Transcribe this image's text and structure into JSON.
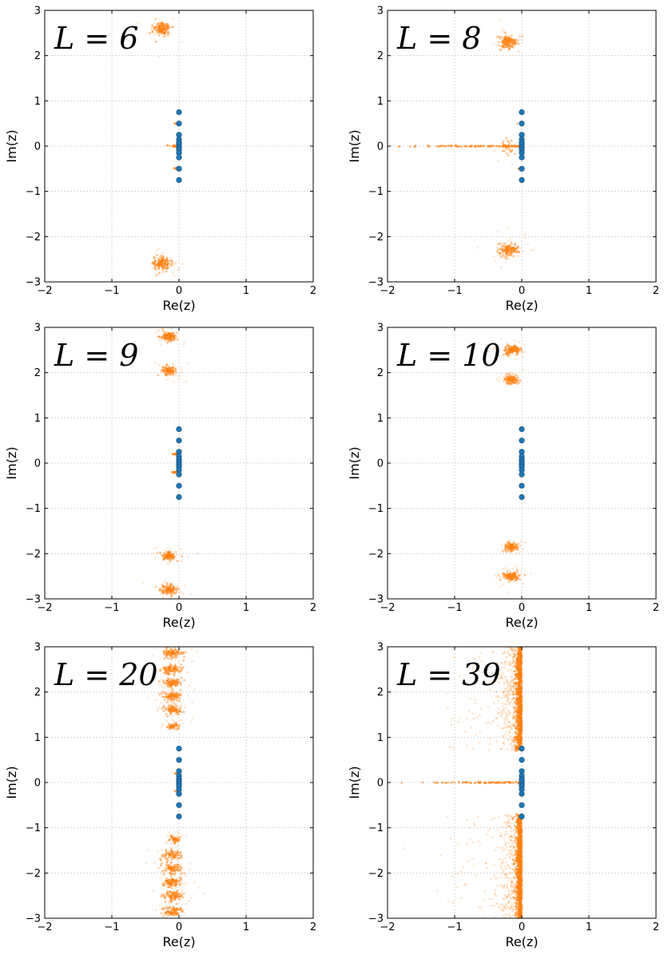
{
  "chart_data": [
    {
      "type": "scatter",
      "panel_label": "L = 6",
      "xlabel": "Re(z)",
      "ylabel": "Im(z)",
      "xlim": [
        -2,
        2
      ],
      "ylim": [
        -3,
        3
      ],
      "xticks": [
        -2,
        -1,
        0,
        1,
        2
      ],
      "yticks": [
        -3,
        -2,
        -1,
        0,
        1,
        2,
        3
      ],
      "grid": true,
      "blue_points": [
        [
          0,
          0.75
        ],
        [
          0,
          0.5
        ],
        [
          0,
          0.25
        ],
        [
          0,
          0.15
        ],
        [
          0,
          0.08
        ],
        [
          0,
          0.03
        ],
        [
          0,
          -0.03
        ],
        [
          0,
          -0.08
        ],
        [
          0,
          -0.15
        ],
        [
          0,
          -0.25
        ],
        [
          0,
          -0.5
        ],
        [
          0,
          -0.75
        ]
      ],
      "orange_clusters": [
        {
          "x": -0.25,
          "y": 2.6,
          "sx": 0.06,
          "sy": 0.07,
          "n": 160
        },
        {
          "x": -0.25,
          "y": -2.6,
          "sx": 0.06,
          "sy": 0.07,
          "n": 160
        }
      ],
      "orange_streaks": [
        {
          "x0": -0.2,
          "x1": 0.0,
          "y": 0.0,
          "n": 40
        },
        {
          "x0": -0.08,
          "x1": 0.0,
          "y": 0.5,
          "n": 12
        },
        {
          "x0": -0.08,
          "x1": 0.0,
          "y": -0.5,
          "n": 12
        }
      ],
      "orange_bands": []
    },
    {
      "type": "scatter",
      "panel_label": "L = 8",
      "xlabel": "Re(z)",
      "ylabel": "Im(z)",
      "xlim": [
        -2,
        2
      ],
      "ylim": [
        -3,
        3
      ],
      "xticks": [
        -2,
        -1,
        0,
        1,
        2
      ],
      "yticks": [
        -3,
        -2,
        -1,
        0,
        1,
        2,
        3
      ],
      "grid": true,
      "blue_points": [
        [
          0,
          0.75
        ],
        [
          0,
          0.5
        ],
        [
          0,
          0.25
        ],
        [
          0,
          0.15
        ],
        [
          0,
          0.08
        ],
        [
          0,
          0.03
        ],
        [
          0,
          -0.03
        ],
        [
          0,
          -0.08
        ],
        [
          0,
          -0.15
        ],
        [
          0,
          -0.25
        ],
        [
          0,
          -0.5
        ],
        [
          0,
          -0.75
        ]
      ],
      "orange_clusters": [
        {
          "x": -0.2,
          "y": 2.3,
          "sx": 0.07,
          "sy": 0.07,
          "n": 160
        },
        {
          "x": -0.2,
          "y": -2.3,
          "sx": 0.07,
          "sy": 0.07,
          "n": 160
        },
        {
          "x": -0.18,
          "y": 0.0,
          "sx": 0.05,
          "sy": 0.1,
          "n": 30
        }
      ],
      "orange_streaks": [
        {
          "x0": -2.0,
          "x1": 0.0,
          "y": 0.0,
          "n": 120
        },
        {
          "x0": -0.08,
          "x1": 0.0,
          "y": 0.5,
          "n": 10
        },
        {
          "x0": -0.08,
          "x1": 0.0,
          "y": -0.5,
          "n": 10
        }
      ],
      "orange_bands": []
    },
    {
      "type": "scatter",
      "panel_label": "L = 9",
      "xlabel": "Re(z)",
      "ylabel": "Im(z)",
      "xlim": [
        -2,
        2
      ],
      "ylim": [
        -3,
        3
      ],
      "xticks": [
        -2,
        -1,
        0,
        1,
        2
      ],
      "yticks": [
        -3,
        -2,
        -1,
        0,
        1,
        2,
        3
      ],
      "grid": true,
      "blue_points": [
        [
          0,
          0.75
        ],
        [
          0,
          0.5
        ],
        [
          0,
          0.25
        ],
        [
          0,
          0.15
        ],
        [
          0,
          0.08
        ],
        [
          0,
          0.03
        ],
        [
          0,
          -0.03
        ],
        [
          0,
          -0.08
        ],
        [
          0,
          -0.15
        ],
        [
          0,
          -0.25
        ],
        [
          0,
          -0.5
        ],
        [
          0,
          -0.75
        ]
      ],
      "orange_clusters": [
        {
          "x": -0.15,
          "y": 2.8,
          "sx": 0.06,
          "sy": 0.05,
          "n": 140
        },
        {
          "x": -0.15,
          "y": 2.05,
          "sx": 0.05,
          "sy": 0.05,
          "n": 120
        },
        {
          "x": -0.15,
          "y": -2.05,
          "sx": 0.05,
          "sy": 0.05,
          "n": 120
        },
        {
          "x": -0.15,
          "y": -2.8,
          "sx": 0.06,
          "sy": 0.05,
          "n": 140
        }
      ],
      "orange_streaks": [
        {
          "x0": -0.12,
          "x1": 0.0,
          "y": 0.2,
          "n": 30
        },
        {
          "x0": -0.12,
          "x1": 0.0,
          "y": -0.2,
          "n": 30
        }
      ],
      "orange_bands": []
    },
    {
      "type": "scatter",
      "panel_label": "L = 10",
      "xlabel": "Re(z)",
      "ylabel": "Im(z)",
      "xlim": [
        -2,
        2
      ],
      "ylim": [
        -3,
        3
      ],
      "xticks": [
        -2,
        -1,
        0,
        1,
        2
      ],
      "yticks": [
        -3,
        -2,
        -1,
        0,
        1,
        2,
        3
      ],
      "grid": true,
      "blue_points": [
        [
          0,
          0.75
        ],
        [
          0,
          0.5
        ],
        [
          0,
          0.25
        ],
        [
          0,
          0.15
        ],
        [
          0,
          0.08
        ],
        [
          0,
          0.03
        ],
        [
          0,
          -0.03
        ],
        [
          0,
          -0.08
        ],
        [
          0,
          -0.15
        ],
        [
          0,
          -0.25
        ],
        [
          0,
          -0.5
        ],
        [
          0,
          -0.75
        ]
      ],
      "orange_clusters": [
        {
          "x": -0.15,
          "y": 2.5,
          "sx": 0.06,
          "sy": 0.05,
          "n": 140
        },
        {
          "x": -0.15,
          "y": 1.85,
          "sx": 0.05,
          "sy": 0.05,
          "n": 120
        },
        {
          "x": -0.15,
          "y": -1.85,
          "sx": 0.05,
          "sy": 0.05,
          "n": 120
        },
        {
          "x": -0.15,
          "y": -2.5,
          "sx": 0.06,
          "sy": 0.05,
          "n": 140
        }
      ],
      "orange_streaks": [
        {
          "x0": -0.03,
          "x1": 0.0,
          "y": 0.2,
          "n": 8
        },
        {
          "x0": -0.03,
          "x1": 0.0,
          "y": -0.2,
          "n": 8
        }
      ],
      "orange_bands": []
    },
    {
      "type": "scatter",
      "panel_label": "L = 20",
      "xlabel": "Re(z)",
      "ylabel": "Im(z)",
      "xlim": [
        -2,
        2
      ],
      "ylim": [
        -3,
        3
      ],
      "xticks": [
        -2,
        -1,
        0,
        1,
        2
      ],
      "yticks": [
        -3,
        -2,
        -1,
        0,
        1,
        2,
        3
      ],
      "grid": true,
      "blue_points": [
        [
          0,
          0.75
        ],
        [
          0,
          0.5
        ],
        [
          0,
          0.25
        ],
        [
          0,
          0.15
        ],
        [
          0,
          0.08
        ],
        [
          0,
          0.03
        ],
        [
          0,
          -0.03
        ],
        [
          0,
          -0.08
        ],
        [
          0,
          -0.15
        ],
        [
          0,
          -0.25
        ],
        [
          0,
          -0.5
        ],
        [
          0,
          -0.75
        ]
      ],
      "orange_clusters": [
        {
          "x": -0.1,
          "y": 2.85,
          "sx": 0.07,
          "sy": 0.05,
          "n": 110
        },
        {
          "x": -0.1,
          "y": 2.5,
          "sx": 0.07,
          "sy": 0.05,
          "n": 110
        },
        {
          "x": -0.1,
          "y": 2.2,
          "sx": 0.07,
          "sy": 0.05,
          "n": 110
        },
        {
          "x": -0.1,
          "y": 1.9,
          "sx": 0.07,
          "sy": 0.05,
          "n": 110
        },
        {
          "x": -0.1,
          "y": 1.6,
          "sx": 0.07,
          "sy": 0.05,
          "n": 100
        },
        {
          "x": -0.08,
          "y": 1.25,
          "sx": 0.04,
          "sy": 0.04,
          "n": 60
        },
        {
          "x": -0.08,
          "y": -1.25,
          "sx": 0.04,
          "sy": 0.04,
          "n": 60
        },
        {
          "x": -0.1,
          "y": -1.6,
          "sx": 0.07,
          "sy": 0.05,
          "n": 100
        },
        {
          "x": -0.1,
          "y": -1.9,
          "sx": 0.07,
          "sy": 0.05,
          "n": 110
        },
        {
          "x": -0.1,
          "y": -2.2,
          "sx": 0.07,
          "sy": 0.05,
          "n": 110
        },
        {
          "x": -0.1,
          "y": -2.5,
          "sx": 0.07,
          "sy": 0.05,
          "n": 110
        },
        {
          "x": -0.1,
          "y": -2.85,
          "sx": 0.07,
          "sy": 0.05,
          "n": 110
        }
      ],
      "orange_streaks": [
        {
          "x0": -0.08,
          "x1": 0.0,
          "y": 0.2,
          "n": 10
        },
        {
          "x0": -0.08,
          "x1": 0.0,
          "y": -0.2,
          "n": 10
        }
      ],
      "orange_bands": []
    },
    {
      "type": "scatter",
      "panel_label": "L = 39",
      "xlabel": "Re(z)",
      "ylabel": "Im(z)",
      "xlim": [
        -2,
        2
      ],
      "ylim": [
        -3,
        3
      ],
      "xticks": [
        -2,
        -1,
        0,
        1,
        2
      ],
      "yticks": [
        -3,
        -2,
        -1,
        0,
        1,
        2,
        3
      ],
      "grid": true,
      "blue_points": [
        [
          0,
          0.75
        ],
        [
          0,
          0.5
        ],
        [
          0,
          0.25
        ],
        [
          0,
          0.15
        ],
        [
          0,
          0.08
        ],
        [
          0,
          0.03
        ],
        [
          0,
          -0.03
        ],
        [
          0,
          -0.08
        ],
        [
          0,
          -0.15
        ],
        [
          0,
          -0.25
        ],
        [
          0,
          -0.5
        ],
        [
          0,
          -0.75
        ]
      ],
      "orange_clusters": [],
      "orange_streaks": [
        {
          "x0": -2.0,
          "x1": 0.0,
          "y": 0.0,
          "n": 90
        }
      ],
      "orange_bands": [
        {
          "y0": 0.7,
          "y1": 3.0,
          "n": 1400
        },
        {
          "y0": -3.0,
          "y1": -0.7,
          "n": 1400
        }
      ]
    }
  ]
}
